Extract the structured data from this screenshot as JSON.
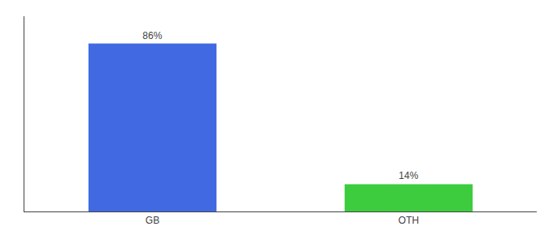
{
  "chart_data": {
    "type": "bar",
    "categories": [
      "GB",
      "OTH"
    ],
    "values": [
      86,
      14
    ],
    "value_labels": [
      "86%",
      "14%"
    ],
    "colors": [
      "#4169e1",
      "#3dcc3d"
    ],
    "ylim": [
      0,
      100
    ],
    "tick_labels": "x",
    "grid": false
  }
}
